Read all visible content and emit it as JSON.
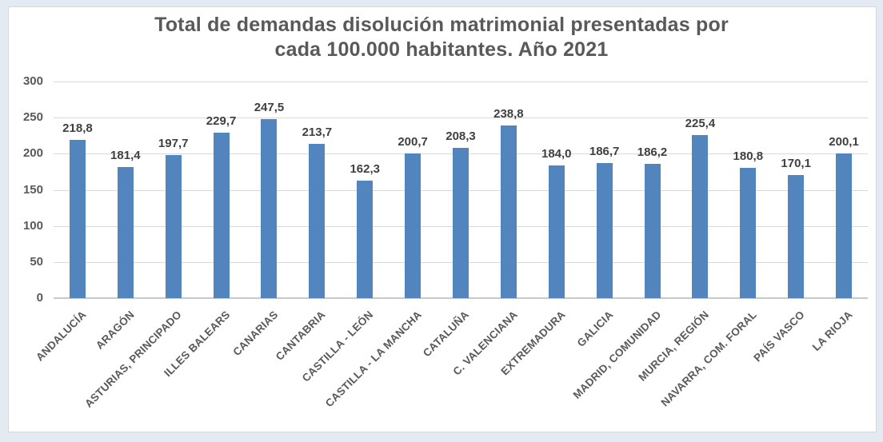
{
  "chart_data": {
    "type": "bar",
    "title": "Total de demandas disolución matrimonial presentadas por cada 100.000 habitantes. Año 2021",
    "title_lines": [
      "Total de demandas disolución matrimonial presentadas por",
      "cada 100.000 habitantes. Año 2021"
    ],
    "categories": [
      "ANDALUCÍA",
      "ARAGÓN",
      "ASTURIAS, PRINCIPADO",
      "ILLES BALEARS",
      "CANARIAS",
      "CANTABRIA",
      "CASTILLA - LEÓN",
      "CASTILLA - LA MANCHA",
      "CATALUÑA",
      "C. VALENCIANA",
      "EXTREMADURA",
      "GALICIA",
      "MADRID, COMUNIDAD",
      "MURCIA, REGIÓN",
      "NAVARRA, COM. FORAL",
      "PAÍS VASCO",
      "LA RIOJA"
    ],
    "values": [
      218.8,
      181.4,
      197.7,
      229.7,
      247.5,
      213.7,
      162.3,
      200.7,
      208.3,
      238.8,
      184.0,
      186.7,
      186.2,
      225.4,
      180.8,
      170.1,
      200.1
    ],
    "value_labels": [
      "218,8",
      "181,4",
      "197,7",
      "229,7",
      "247,5",
      "213,7",
      "162,3",
      "200,7",
      "208,3",
      "238,8",
      "184,0",
      "186,7",
      "186,2",
      "225,4",
      "180,8",
      "170,1",
      "200,1"
    ],
    "xlabel": "",
    "ylabel": "",
    "ylim": [
      0,
      300
    ],
    "yticks": [
      0,
      50,
      100,
      150,
      200,
      250,
      300
    ],
    "grid": "horizontal",
    "legend": "none"
  },
  "colors": {
    "bar": "#5284be",
    "title": "#595959",
    "axis_labels": "#595959",
    "data_labels": "#404040",
    "gridline": "#d9d9d9",
    "axis_line": "#c8c8c8",
    "chart_background": "#ffffff",
    "chart_border": "#d7d7d7",
    "page_background": "#e4eaf1"
  }
}
